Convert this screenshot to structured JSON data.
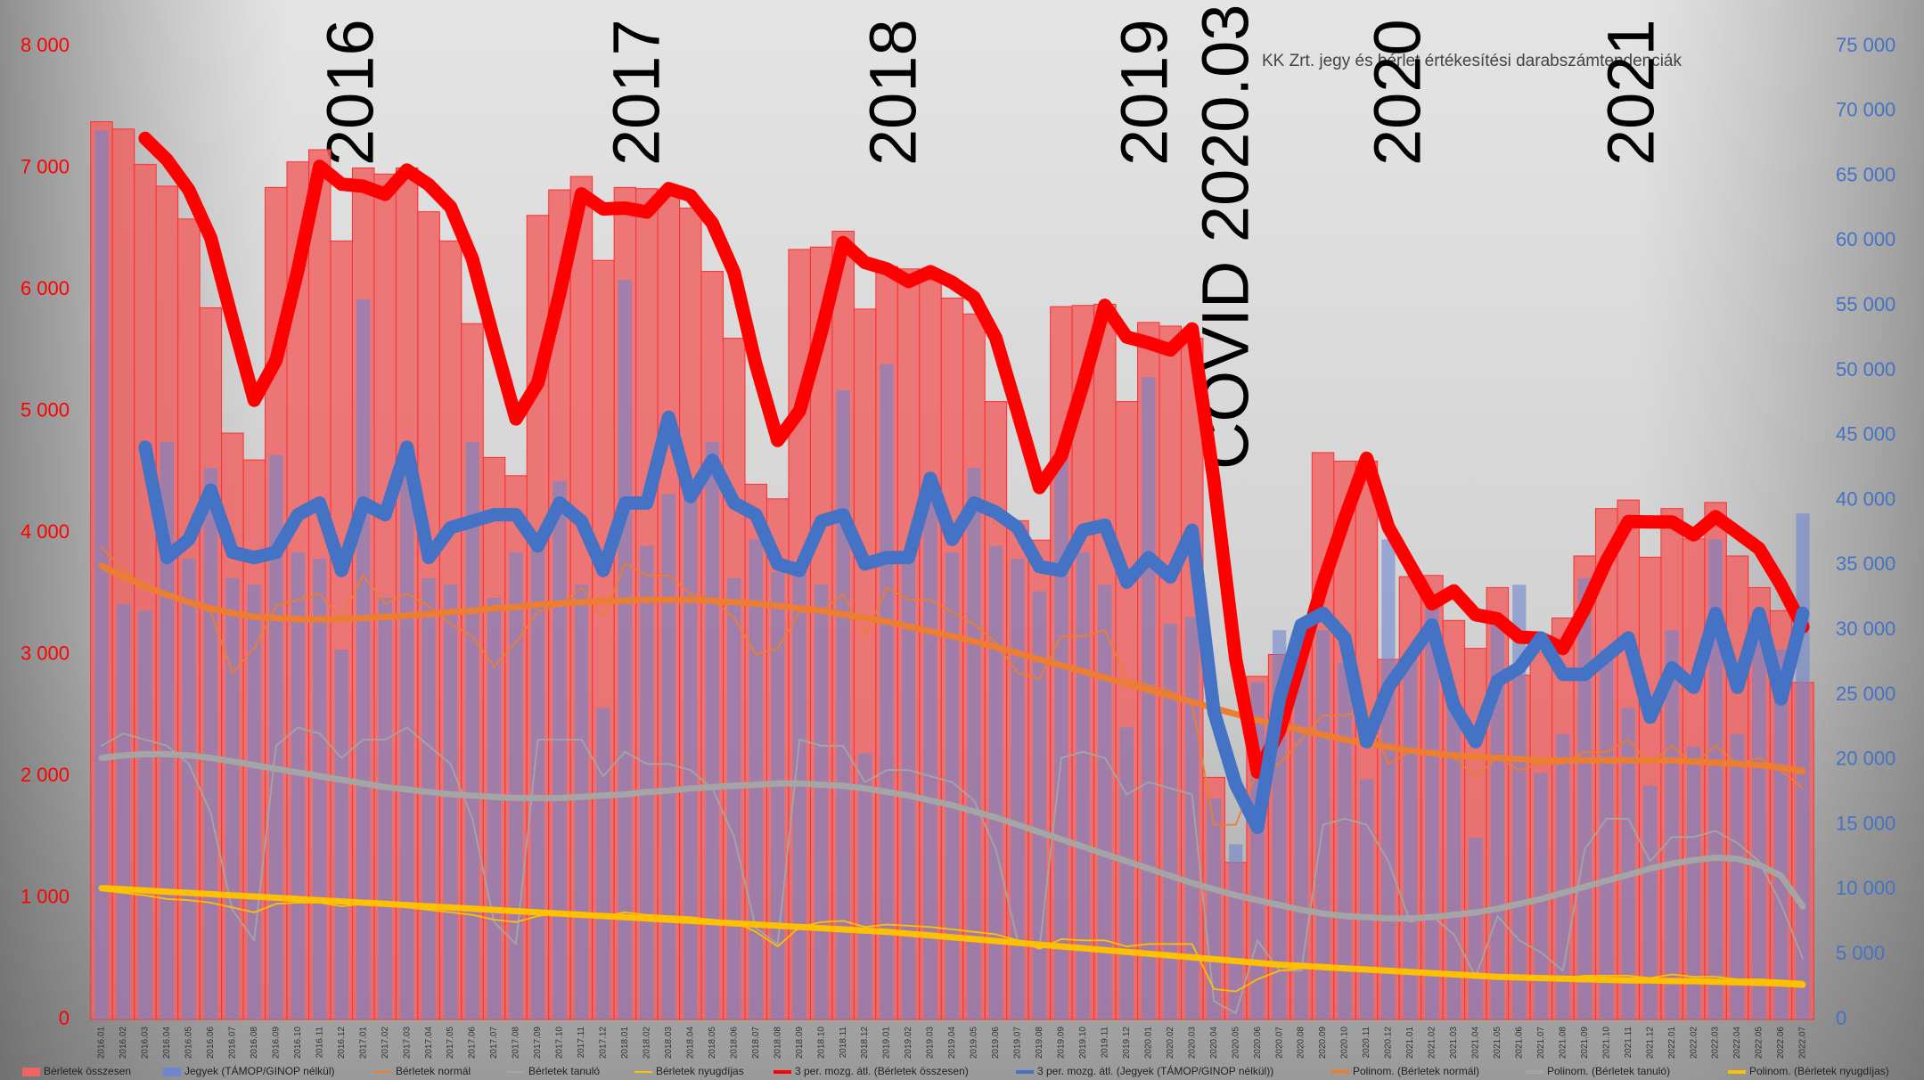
{
  "chart_data": {
    "type": "combo",
    "subtitle": "KK Zrt. jegy és bérlet értékesítési darabszámtendenciák",
    "annotations": [
      "2016",
      "2017",
      "2018",
      "2019",
      "COVID 2020.03",
      "2020",
      "2021"
    ],
    "categories": [
      "2016.01",
      "2016.02",
      "2016.03",
      "2016.04",
      "2016.05",
      "2016.06",
      "2016.07",
      "2016.08",
      "2016.09",
      "2016.10",
      "2016.11",
      "2016.12",
      "2017.01",
      "2017.02",
      "2017.03",
      "2017.04",
      "2017.05",
      "2017.06",
      "2017.07",
      "2017.08",
      "2017.09",
      "2017.10",
      "2017.11",
      "2017.12",
      "2018.01",
      "2018.02",
      "2018.03",
      "2018.04",
      "2018.05",
      "2018.06",
      "2018.07",
      "2018.08",
      "2018.09",
      "2018.10",
      "2018.11",
      "2018.12",
      "2019.01",
      "2019.02",
      "2019.03",
      "2019.04",
      "2019.05",
      "2019.06",
      "2019.07",
      "2019.08",
      "2019.09",
      "2019.10",
      "2019.11",
      "2019.12",
      "2020.01",
      "2020.02",
      "2020.03",
      "2020.04",
      "2020.05",
      "2020.06",
      "2020.07",
      "2020.08",
      "2020.09",
      "2020.10",
      "2020.11",
      "2020.12",
      "2021.01",
      "2021.02",
      "2021.03",
      "2021.04",
      "2021.05",
      "2021.06",
      "2021.07",
      "2021.08",
      "2021.09",
      "2021.10",
      "2021.11",
      "2021.12",
      "2022.01",
      "2022.02",
      "2022.03",
      "2022.04",
      "2022.05",
      "2022.06",
      "2022.07"
    ],
    "ylim": [
      0,
      8000
    ],
    "yticks": [
      0,
      {
        "value": 1000,
        "label": "1 000"
      },
      {
        "value": 2000,
        "label": "2 000"
      },
      {
        "value": 3000,
        "label": "3 000"
      },
      {
        "value": 4000,
        "label": "4 000"
      },
      {
        "value": 5000,
        "label": "5 000"
      },
      {
        "value": 6000,
        "label": "6 000"
      },
      {
        "value": 7000,
        "label": "7 000"
      },
      {
        "value": 8000,
        "label": "8 000"
      }
    ],
    "y2lim": [
      0,
      75000
    ],
    "y2ticks": [
      0,
      {
        "value": 5000,
        "label": "5 000"
      },
      {
        "value": 10000,
        "label": "10 000"
      },
      {
        "value": 15000,
        "label": "15 000"
      },
      {
        "value": 20000,
        "label": "20 000"
      },
      {
        "value": 25000,
        "label": "25 000"
      },
      {
        "value": 30000,
        "label": "30 000"
      },
      {
        "value": 35000,
        "label": "35 000"
      },
      {
        "value": 40000,
        "label": "40 000"
      },
      {
        "value": 45000,
        "label": "45 000"
      },
      {
        "value": 50000,
        "label": "50 000"
      },
      {
        "value": 55000,
        "label": "55 000"
      },
      {
        "value": 60000,
        "label": "60 000"
      },
      {
        "value": 65000,
        "label": "65 000"
      },
      {
        "value": 70000,
        "label": "70 000"
      },
      {
        "value": 75000,
        "label": "75 000"
      }
    ],
    "series": [
      {
        "name": "Bérletek összesen",
        "type": "bar",
        "color": "#f06464",
        "values": [
          7380,
          7320,
          7030,
          6850,
          6580,
          5850,
          4820,
          4600,
          6840,
          7050,
          7150,
          6400,
          7000,
          6950,
          7000,
          6640,
          6400,
          5720,
          4620,
          4470,
          6610,
          6820,
          6930,
          6240,
          6840,
          6830,
          6820,
          6670,
          6150,
          5600,
          4400,
          4280,
          6330,
          6350,
          6480,
          5840,
          6190,
          6170,
          6080,
          5930,
          5800,
          5080,
          4100,
          3940,
          5860,
          5870,
          5880,
          5080,
          5730,
          5700,
          5600,
          1990,
          1290,
          2820,
          3000,
          3110,
          4660,
          4590,
          4590,
          2960,
          3640,
          3650,
          3280,
          3050,
          3550,
          2830,
          3020,
          3300,
          3810,
          4200,
          4270,
          3800,
          4200,
          3950,
          4250,
          3810,
          3550,
          3360,
          2770
        ]
      },
      {
        "name": "Jegyek (TÁMOP/GINOP nélkül)",
        "type": "bar",
        "axis": "y2",
        "color": "#6f86cf",
        "values": [
          68500,
          32000,
          31500,
          44500,
          35500,
          42500,
          34000,
          33500,
          43500,
          36000,
          35500,
          28500,
          55500,
          32500,
          44000,
          34000,
          33500,
          44500,
          32500,
          36000,
          37500,
          41500,
          33500,
          24000,
          57000,
          36500,
          40500,
          41000,
          44500,
          34000,
          37000,
          34500,
          34500,
          33500,
          48500,
          20500,
          50500,
          36000,
          40500,
          36000,
          42500,
          36500,
          35500,
          33000,
          43500,
          36000,
          33500,
          22500,
          49500,
          30500,
          31000,
          17000,
          13500,
          26000,
          30000,
          29500,
          30000,
          27500,
          18500,
          37000,
          28000,
          32000,
          24000,
          14000,
          31000,
          33500,
          19000,
          22000,
          34000,
          28500,
          24000,
          18000,
          30000,
          21000,
          37000,
          22000,
          30000,
          28500,
          39000
        ]
      },
      {
        "name": "Bérletek normál",
        "type": "line",
        "color": "#ed7d31",
        "values": [
          3880,
          3700,
          3550,
          3500,
          3420,
          3350,
          2850,
          3050,
          3400,
          3450,
          3500,
          3300,
          3650,
          3420,
          3500,
          3400,
          3250,
          3150,
          2900,
          3100,
          3350,
          3400,
          3550,
          3300,
          3750,
          3650,
          3650,
          3500,
          3450,
          3300,
          3000,
          3050,
          3350,
          3350,
          3500,
          3150,
          3550,
          3450,
          3450,
          3350,
          3250,
          3100,
          2850,
          2800,
          3150,
          3150,
          3200,
          2800,
          2750,
          2700,
          2600,
          1600,
          1600,
          2050,
          2100,
          2300,
          2500,
          2500,
          2550,
          2100,
          2200,
          2200,
          2150,
          2000,
          2150,
          2050,
          2100,
          2100,
          2200,
          2200,
          2300,
          2100,
          2250,
          2100,
          2250,
          2100,
          2150,
          2050,
          1900
        ]
      },
      {
        "name": "Bérletek tanuló",
        "type": "line",
        "color": "#a5a5a5",
        "values": [
          2250,
          2350,
          2300,
          2250,
          2100,
          1700,
          900,
          650,
          2250,
          2400,
          2350,
          2150,
          2300,
          2300,
          2400,
          2250,
          2100,
          1650,
          800,
          620,
          2300,
          2300,
          2300,
          2000,
          2200,
          2100,
          2100,
          2050,
          1900,
          1500,
          750,
          620,
          2300,
          2250,
          2250,
          1950,
          2050,
          2050,
          2000,
          1950,
          1800,
          1400,
          650,
          580,
          2150,
          2200,
          2150,
          1850,
          1950,
          1900,
          1850,
          150,
          50,
          650,
          400,
          400,
          1600,
          1650,
          1600,
          1300,
          800,
          850,
          700,
          350,
          850,
          650,
          550,
          400,
          1400,
          1650,
          1650,
          1300,
          1500,
          1500,
          1550,
          1450,
          1300,
          950,
          500
        ]
      },
      {
        "name": "Bérletek nyugdíjas",
        "type": "line",
        "color": "#ffc000",
        "values": [
          1060,
          1040,
          1020,
          990,
          980,
          960,
          920,
          880,
          950,
          960,
          960,
          930,
          950,
          940,
          920,
          900,
          880,
          860,
          820,
          800,
          850,
          870,
          880,
          850,
          880,
          860,
          850,
          840,
          820,
          800,
          720,
          600,
          760,
          800,
          810,
          760,
          780,
          770,
          760,
          740,
          720,
          700,
          650,
          580,
          660,
          650,
          650,
          600,
          620,
          620,
          620,
          250,
          230,
          330,
          400,
          420,
          430,
          430,
          420,
          390,
          380,
          380,
          370,
          340,
          360,
          350,
          350,
          340,
          360,
          360,
          360,
          340,
          370,
          350,
          350,
          330,
          330,
          320,
          310
        ]
      },
      {
        "name": "3 per. mozg. átl. (Bérletek összesen)",
        "type": "line",
        "color": "#ff0000",
        "values": [
          null,
          null,
          7243,
          7067,
          6820,
          6427,
          5750,
          5090,
          5420,
          6163,
          7013,
          6867,
          6850,
          6783,
          6983,
          6863,
          6680,
          6253,
          5580,
          4937,
          5233,
          5967,
          6787,
          6663,
          6670,
          6637,
          6830,
          6773,
          6547,
          6140,
          5383,
          4760,
          5003,
          5653,
          6387,
          6223,
          6170,
          6067,
          6147,
          6060,
          5937,
          5603,
          4993,
          4373,
          4633,
          5223,
          5870,
          5610,
          5563,
          5503,
          5677,
          4430,
          2960,
          2033,
          2370,
          2977,
          3590,
          4120,
          4613,
          4047,
          3730,
          3417,
          3523,
          3327,
          3293,
          3143,
          3133,
          3050,
          3377,
          3770,
          4093,
          4090,
          4090,
          3983,
          4133,
          4003,
          3870,
          3573,
          3227
        ]
      },
      {
        "name": "3 per. mozg. átl. (Jegyek (TÁMOP/GINOP nélkül))",
        "type": "line",
        "axis": "y2",
        "color": "#4472c4",
        "values": [
          null,
          null,
          44100,
          35600,
          37000,
          40800,
          36000,
          35600,
          36000,
          38900,
          39800,
          34600,
          39800,
          38900,
          44100,
          35600,
          37900,
          38400,
          38900,
          38900,
          36500,
          39800,
          38400,
          34600,
          39800,
          39800,
          46400,
          40300,
          43100,
          39800,
          38900,
          35100,
          34600,
          38400,
          38900,
          35100,
          35600,
          35600,
          41700,
          37000,
          39800,
          39100,
          37900,
          34900,
          34600,
          37700,
          38100,
          33700,
          35600,
          34100,
          37700,
          23700,
          18100,
          14800,
          24700,
          30400,
          31300,
          29400,
          21400,
          25600,
          28000,
          30400,
          24200,
          21400,
          26100,
          27100,
          29400,
          26600,
          26600,
          28000,
          29400,
          23300,
          27100,
          25600,
          31300,
          25600,
          31300,
          24700,
          31300
        ]
      },
      {
        "name": "Polinom. (Bérletek normál)",
        "type": "line",
        "color": "#ed7d31",
        "values": [
          3730,
          3640,
          3560,
          3490,
          3430,
          3380,
          3340,
          3310,
          3300,
          3290,
          3290,
          3290,
          3300,
          3310,
          3320,
          3330,
          3350,
          3360,
          3380,
          3390,
          3410,
          3420,
          3430,
          3440,
          3440,
          3450,
          3450,
          3450,
          3440,
          3430,
          3420,
          3400,
          3380,
          3360,
          3330,
          3300,
          3270,
          3230,
          3190,
          3150,
          3110,
          3060,
          3010,
          2960,
          2910,
          2860,
          2810,
          2760,
          2710,
          2660,
          2610,
          2560,
          2510,
          2460,
          2420,
          2380,
          2340,
          2300,
          2270,
          2240,
          2210,
          2190,
          2170,
          2160,
          2150,
          2140,
          2130,
          2130,
          2130,
          2130,
          2130,
          2130,
          2130,
          2120,
          2110,
          2100,
          2090,
          2070,
          2040
        ]
      },
      {
        "name": "Polinom. (Bérletek tanuló)",
        "type": "line",
        "color": "#a5a5a5",
        "values": [
          2150,
          2170,
          2180,
          2180,
          2170,
          2150,
          2120,
          2090,
          2060,
          2030,
          2000,
          1970,
          1940,
          1910,
          1890,
          1870,
          1850,
          1840,
          1830,
          1820,
          1820,
          1820,
          1830,
          1840,
          1850,
          1870,
          1880,
          1900,
          1910,
          1920,
          1930,
          1940,
          1940,
          1930,
          1920,
          1900,
          1870,
          1840,
          1800,
          1760,
          1710,
          1660,
          1600,
          1540,
          1480,
          1420,
          1360,
          1300,
          1240,
          1180,
          1120,
          1070,
          1020,
          980,
          940,
          900,
          870,
          850,
          840,
          830,
          830,
          840,
          860,
          880,
          910,
          950,
          990,
          1040,
          1090,
          1140,
          1190,
          1240,
          1280,
          1310,
          1330,
          1320,
          1270,
          1180,
          930
        ]
      },
      {
        "name": "Polinom. (Bérletek nyugdíjas)",
        "type": "line",
        "color": "#ffc000",
        "values": [
          1080,
          1070,
          1060,
          1050,
          1040,
          1030,
          1020,
          1010,
          1000,
          990,
          980,
          970,
          960,
          950,
          940,
          930,
          920,
          910,
          900,
          890,
          880,
          870,
          860,
          850,
          840,
          830,
          820,
          810,
          800,
          790,
          780,
          770,
          760,
          750,
          740,
          730,
          720,
          705,
          690,
          675,
          660,
          645,
          630,
          615,
          600,
          585,
          570,
          555,
          540,
          525,
          510,
          495,
          480,
          465,
          450,
          440,
          430,
          420,
          410,
          400,
          390,
          380,
          370,
          360,
          350,
          345,
          340,
          335,
          330,
          325,
          320,
          320,
          315,
          315,
          310,
          305,
          300,
          295,
          285
        ]
      }
    ]
  }
}
